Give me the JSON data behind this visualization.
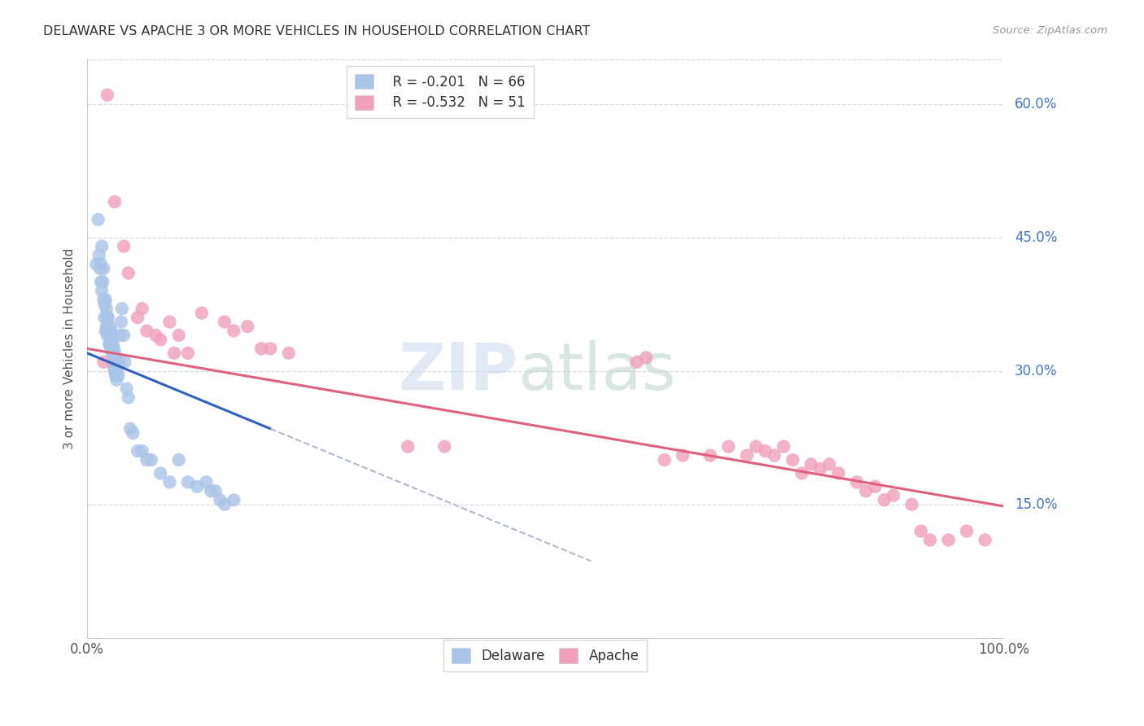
{
  "title": "DELAWARE VS APACHE 3 OR MORE VEHICLES IN HOUSEHOLD CORRELATION CHART",
  "source": "Source: ZipAtlas.com",
  "ylabel": "3 or more Vehicles in Household",
  "xlim": [
    0,
    1.0
  ],
  "ylim": [
    0.0,
    0.65
  ],
  "ytick_right_labels": [
    "60.0%",
    "45.0%",
    "30.0%",
    "15.0%"
  ],
  "ytick_right_values": [
    0.6,
    0.45,
    0.3,
    0.15
  ],
  "background_color": "#ffffff",
  "grid_color": "#d8d8e8",
  "legend_blue_r": "-0.201",
  "legend_blue_n": "66",
  "legend_pink_r": "-0.532",
  "legend_pink_n": "51",
  "blue_color": "#a8c4e8",
  "pink_color": "#f0a0b8",
  "blue_line_color": "#3060c0",
  "pink_line_color": "#e06080",
  "delaware_x": [
    0.01,
    0.012,
    0.013,
    0.014,
    0.015,
    0.015,
    0.016,
    0.016,
    0.017,
    0.018,
    0.018,
    0.019,
    0.019,
    0.02,
    0.02,
    0.021,
    0.021,
    0.022,
    0.022,
    0.023,
    0.023,
    0.024,
    0.024,
    0.025,
    0.025,
    0.026,
    0.026,
    0.027,
    0.027,
    0.028,
    0.028,
    0.029,
    0.029,
    0.03,
    0.03,
    0.031,
    0.031,
    0.032,
    0.032,
    0.033,
    0.034,
    0.035,
    0.036,
    0.037,
    0.038,
    0.04,
    0.041,
    0.043,
    0.045,
    0.047,
    0.05,
    0.055,
    0.06,
    0.065,
    0.07,
    0.08,
    0.09,
    0.1,
    0.11,
    0.12,
    0.13,
    0.135,
    0.14,
    0.145,
    0.15,
    0.16
  ],
  "delaware_y": [
    0.42,
    0.47,
    0.43,
    0.415,
    0.42,
    0.4,
    0.44,
    0.39,
    0.4,
    0.415,
    0.38,
    0.375,
    0.36,
    0.38,
    0.345,
    0.37,
    0.35,
    0.36,
    0.34,
    0.36,
    0.345,
    0.35,
    0.33,
    0.345,
    0.33,
    0.345,
    0.325,
    0.335,
    0.32,
    0.33,
    0.31,
    0.325,
    0.305,
    0.32,
    0.3,
    0.315,
    0.295,
    0.31,
    0.29,
    0.3,
    0.295,
    0.31,
    0.34,
    0.355,
    0.37,
    0.34,
    0.31,
    0.28,
    0.27,
    0.235,
    0.23,
    0.21,
    0.21,
    0.2,
    0.2,
    0.185,
    0.175,
    0.2,
    0.175,
    0.17,
    0.175,
    0.165,
    0.165,
    0.155,
    0.15,
    0.155
  ],
  "apache_x": [
    0.018,
    0.022,
    0.03,
    0.04,
    0.045,
    0.055,
    0.06,
    0.065,
    0.075,
    0.08,
    0.09,
    0.095,
    0.1,
    0.11,
    0.125,
    0.15,
    0.16,
    0.175,
    0.19,
    0.2,
    0.22,
    0.35,
    0.39,
    0.6,
    0.61,
    0.63,
    0.65,
    0.68,
    0.7,
    0.72,
    0.73,
    0.74,
    0.75,
    0.76,
    0.77,
    0.78,
    0.79,
    0.8,
    0.81,
    0.82,
    0.84,
    0.85,
    0.86,
    0.87,
    0.88,
    0.9,
    0.91,
    0.92,
    0.94,
    0.96,
    0.98
  ],
  "apache_y": [
    0.31,
    0.61,
    0.49,
    0.44,
    0.41,
    0.36,
    0.37,
    0.345,
    0.34,
    0.335,
    0.355,
    0.32,
    0.34,
    0.32,
    0.365,
    0.355,
    0.345,
    0.35,
    0.325,
    0.325,
    0.32,
    0.215,
    0.215,
    0.31,
    0.315,
    0.2,
    0.205,
    0.205,
    0.215,
    0.205,
    0.215,
    0.21,
    0.205,
    0.215,
    0.2,
    0.185,
    0.195,
    0.19,
    0.195,
    0.185,
    0.175,
    0.165,
    0.17,
    0.155,
    0.16,
    0.15,
    0.12,
    0.11,
    0.11,
    0.12,
    0.11
  ],
  "blue_line_x0": 0.0,
  "blue_line_x1": 0.2,
  "blue_line_y0": 0.32,
  "blue_line_y1": 0.235,
  "pink_line_x0": 0.0,
  "pink_line_x1": 1.0,
  "pink_line_y0": 0.325,
  "pink_line_y1": 0.148
}
